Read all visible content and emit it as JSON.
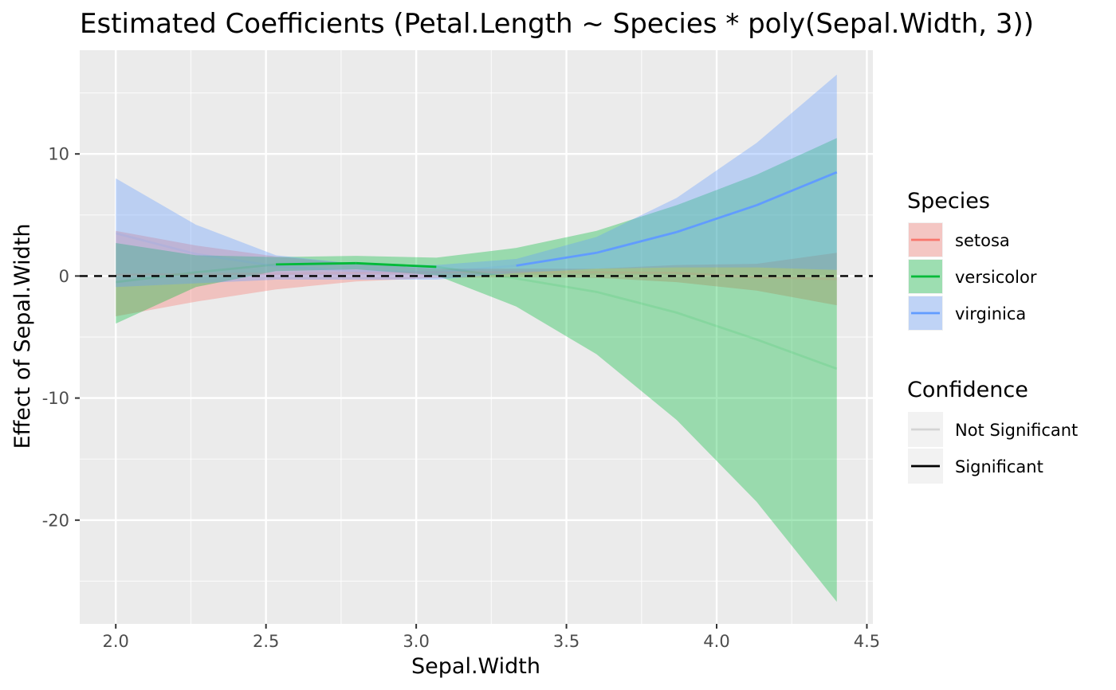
{
  "chart_data": {
    "type": "line",
    "title": "Estimated Coefficients (Petal.Length ~ Species * poly(Sepal.Width, 3))",
    "xlabel": "Sepal.Width",
    "ylabel": "Effect of Sepal.Width",
    "xlim": [
      1.88,
      4.52
    ],
    "ylim": [
      -28.5,
      18.5
    ],
    "x_ticks": [
      2.0,
      2.5,
      3.0,
      3.5,
      4.0,
      4.5
    ],
    "x_tick_labels": [
      "2.0",
      "2.5",
      "3.0",
      "3.5",
      "4.0",
      "4.5"
    ],
    "y_ticks": [
      10,
      0,
      -10,
      -20
    ],
    "y_tick_labels": [
      "10",
      "0",
      "-10",
      "-20"
    ],
    "x_minor_ticks": [
      2.25,
      2.75,
      3.25,
      3.75,
      4.25
    ],
    "y_minor_ticks": [
      15,
      5,
      -5,
      -15,
      -25
    ],
    "grid": true,
    "reference_line": {
      "y": 0,
      "style": "dashed"
    },
    "series": [
      {
        "name": "setosa",
        "color": "#F8766D",
        "x": [
          2.0,
          2.267,
          2.533,
          2.8,
          3.067,
          3.333,
          3.6,
          3.867,
          4.133,
          4.4
        ],
        "y": [
          0.1,
          0.15,
          0.2,
          0.25,
          0.3,
          0.3,
          0.3,
          0.25,
          -0.1,
          -0.25
        ],
        "lower": [
          -3.3,
          -2.1,
          -1.1,
          -0.45,
          -0.15,
          -0.1,
          -0.15,
          -0.5,
          -1.2,
          -2.4
        ],
        "upper": [
          3.7,
          2.5,
          1.6,
          1.0,
          0.6,
          0.6,
          0.6,
          0.9,
          1.0,
          1.9
        ],
        "significant": [
          false,
          false,
          false,
          false,
          false,
          false,
          false,
          false,
          false,
          false
        ]
      },
      {
        "name": "versicolor",
        "color": "#00BA38",
        "x": [
          2.0,
          2.267,
          2.533,
          2.8,
          3.067,
          3.333,
          3.6,
          3.867,
          4.133,
          4.4
        ],
        "y": [
          -0.5,
          0.3,
          0.95,
          1.05,
          0.75,
          -0.2,
          -1.3,
          -3.0,
          -5.2,
          -7.6
        ],
        "lower": [
          -3.9,
          -0.9,
          0.4,
          0.55,
          0.05,
          -2.5,
          -6.4,
          -11.8,
          -18.5,
          -26.7
        ],
        "upper": [
          2.7,
          1.7,
          1.55,
          1.65,
          1.5,
          2.3,
          3.7,
          5.8,
          8.3,
          11.3
        ],
        "significant": [
          false,
          false,
          true,
          true,
          true,
          false,
          false,
          false,
          false,
          false
        ]
      },
      {
        "name": "virginica",
        "color": "#619CFF",
        "x": [
          2.0,
          2.267,
          2.533,
          2.8,
          3.067,
          3.333,
          3.6,
          3.867,
          4.133,
          4.4
        ],
        "y": [
          3.5,
          1.8,
          0.8,
          0.4,
          0.3,
          0.85,
          1.9,
          3.6,
          5.8,
          8.5
        ],
        "lower": [
          -0.9,
          -0.6,
          -0.3,
          -0.3,
          -0.3,
          0.25,
          0.6,
          0.7,
          0.7,
          0.5
        ],
        "upper": [
          8.0,
          4.2,
          1.7,
          1.0,
          0.9,
          1.4,
          3.2,
          6.4,
          10.9,
          16.5
        ],
        "significant": [
          false,
          false,
          false,
          false,
          false,
          true,
          true,
          true,
          true,
          true
        ]
      }
    ],
    "legend": {
      "position": "right",
      "species_title": "Species",
      "species_items": [
        {
          "label": "setosa",
          "color": "#F8766D"
        },
        {
          "label": "versicolor",
          "color": "#00BA38"
        },
        {
          "label": "virginica",
          "color": "#619CFF"
        }
      ],
      "confidence_title": "Confidence",
      "confidence_items": [
        {
          "label": "Not Significant",
          "color": "#d4d4d4"
        },
        {
          "label": "Significant",
          "color": "#000000"
        }
      ]
    },
    "colors": {
      "panel_background": "#EBEBEB",
      "grid_major": "#ffffff",
      "reference_line": "#000000"
    }
  }
}
